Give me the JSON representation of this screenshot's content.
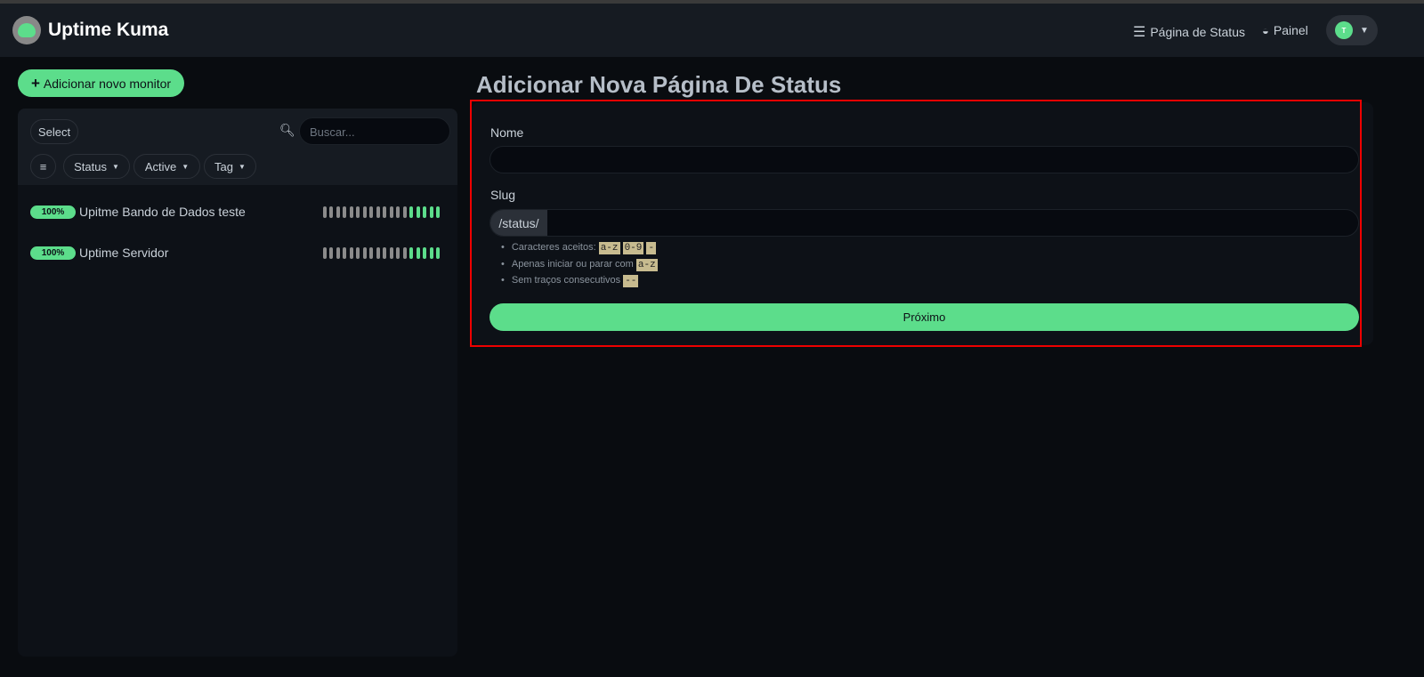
{
  "header": {
    "brand": "Uptime Kuma",
    "nav_status": "Página de Status",
    "nav_dashboard": "Painel",
    "avatar_initial": "T"
  },
  "sidebar": {
    "add_button": "Adicionar novo monitor",
    "select_label": "Select",
    "search_placeholder": "Buscar...",
    "filters": [
      "Status",
      "Active",
      "Tag"
    ],
    "monitors": [
      {
        "name": "Upitme Bando de Dados teste",
        "uptime": "100%",
        "beats": [
          "down",
          "down",
          "down",
          "down",
          "down",
          "down",
          "down",
          "down",
          "down",
          "down",
          "down",
          "down",
          "down",
          "up",
          "up",
          "up",
          "up",
          "up"
        ]
      },
      {
        "name": "Uptime Servidor",
        "uptime": "100%",
        "beats": [
          "down",
          "down",
          "down",
          "down",
          "down",
          "down",
          "down",
          "down",
          "down",
          "down",
          "down",
          "down",
          "down",
          "up",
          "up",
          "up",
          "up",
          "up"
        ]
      }
    ]
  },
  "colors": {
    "accent": "#5cdd8b",
    "beat_gray": "#8b8b8b",
    "highlight": "#e00000"
  },
  "main": {
    "title": "Adicionar Nova Página De Status",
    "name_label": "Nome",
    "name_value": "",
    "slug_label": "Slug",
    "slug_prefix": "/status/",
    "slug_value": "",
    "hints": [
      {
        "text": "Caracteres aceitos:",
        "codes": [
          "a-z",
          "0-9",
          "-"
        ]
      },
      {
        "text": "Apenas iniciar ou parar com",
        "codes": [
          "a-z"
        ]
      },
      {
        "text": "Sem traços consecutivos",
        "codes": [
          "--"
        ]
      }
    ],
    "next_button": "Próximo"
  }
}
